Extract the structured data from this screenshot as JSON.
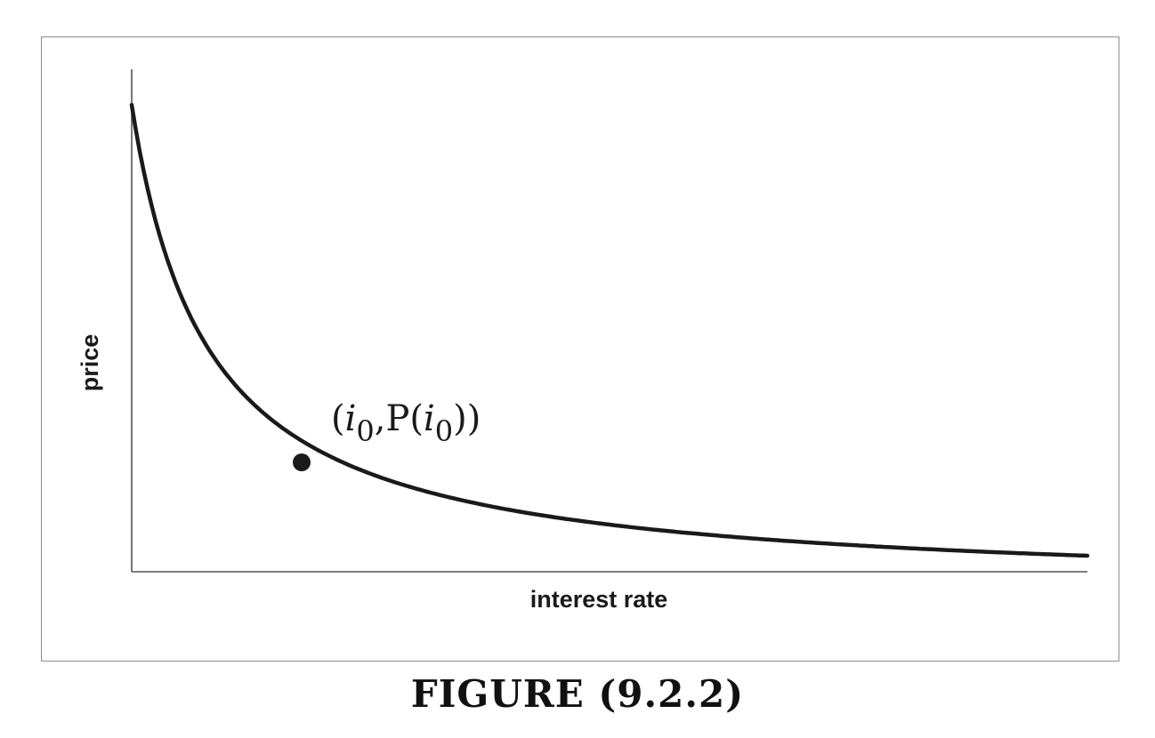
{
  "chart_data": {
    "type": "line",
    "title": "",
    "xlabel": "interest rate",
    "ylabel": "price",
    "annotation": {
      "text": "(i0,P(i0))",
      "parts": {
        "open": "(",
        "var1": "i",
        "sub1": "0",
        "mid": ",P(",
        "var2": "i",
        "sub2": "0",
        "close": "))"
      }
    },
    "grid": false,
    "legend": "none",
    "colors": {
      "curve": "#1a1a1a",
      "axes": "#555555"
    }
  },
  "caption": "FIGURE (9.2.2)"
}
